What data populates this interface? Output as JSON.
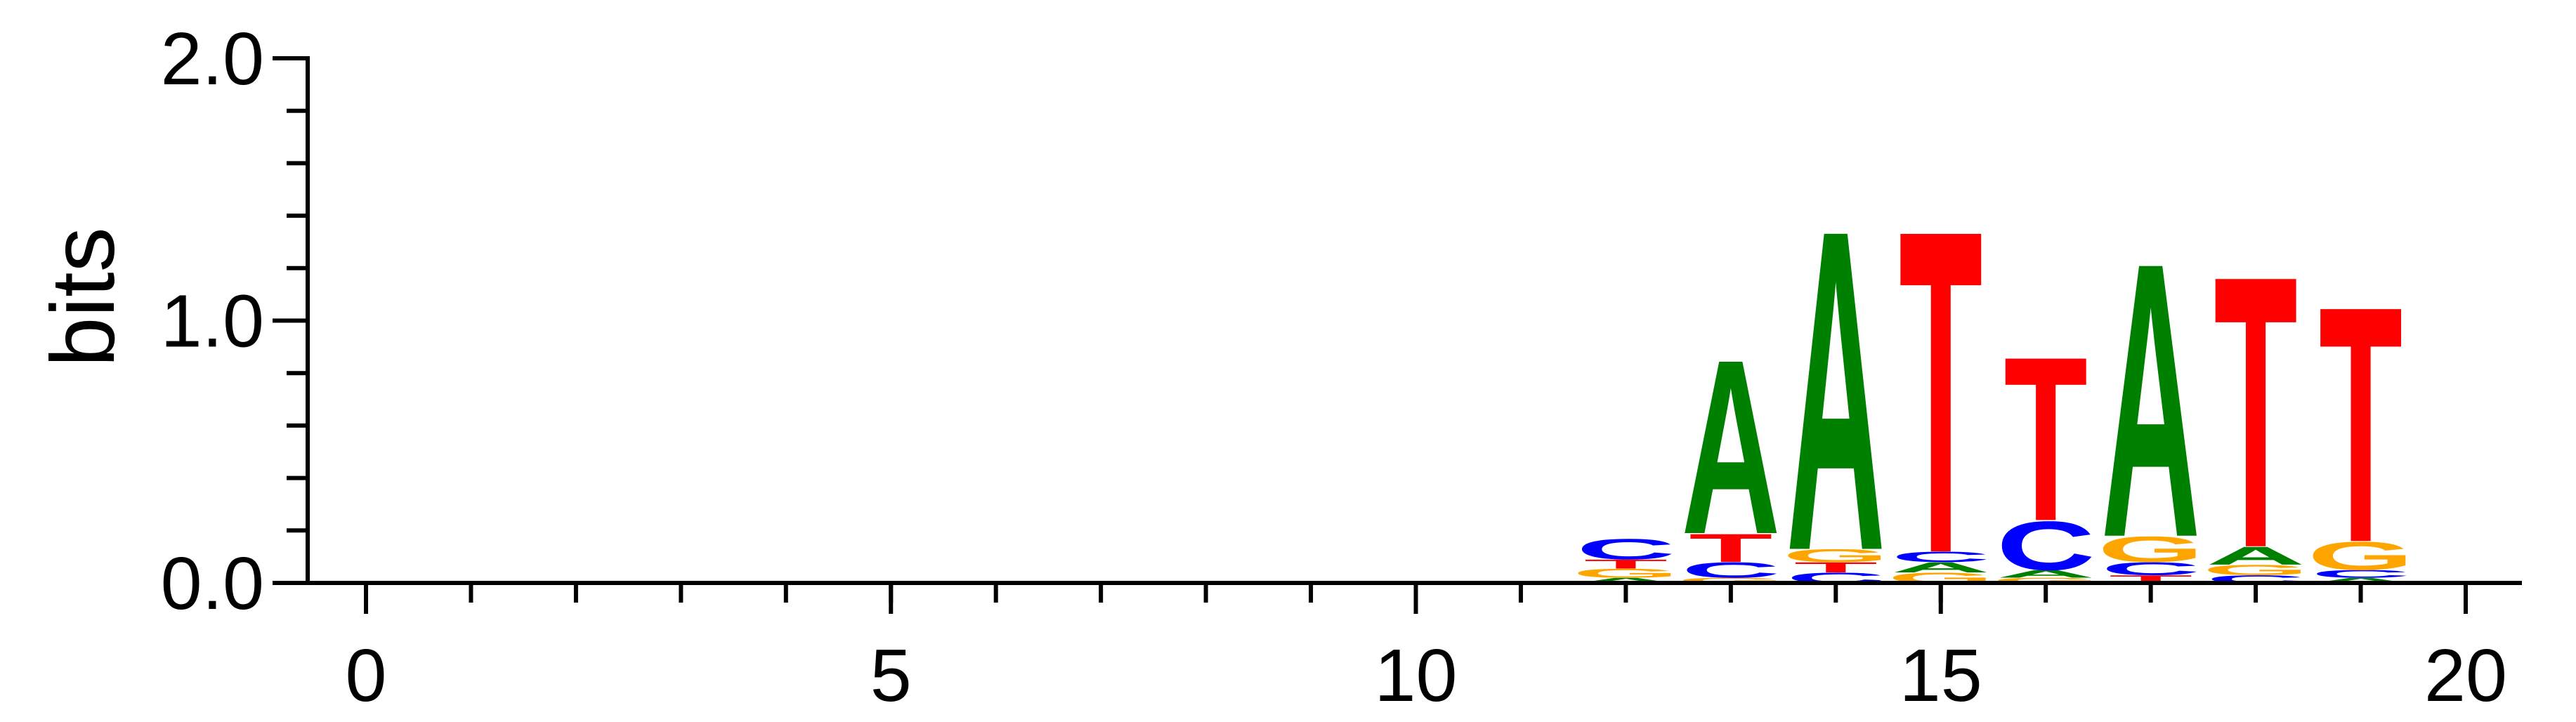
{
  "chart_data": {
    "type": "sequence-logo",
    "ylabel": "bits",
    "ylim": [
      0,
      2.0
    ],
    "xlim": [
      -0.7,
      20.5
    ],
    "y_ticks": [
      {
        "value": 0.0,
        "label": "0.0"
      },
      {
        "value": 1.0,
        "label": "1.0"
      },
      {
        "value": 2.0,
        "label": "2.0"
      }
    ],
    "x_ticks": [
      {
        "value": 0,
        "label": "0"
      },
      {
        "value": 5,
        "label": "5"
      },
      {
        "value": 10,
        "label": "10"
      },
      {
        "value": 15,
        "label": "15"
      },
      {
        "value": 20,
        "label": "20"
      }
    ],
    "letter_colors": {
      "A": "#008000",
      "C": "#0000ff",
      "G": "#ffa500",
      "T": "#ff0000"
    },
    "positions": [
      {
        "pos": 12,
        "stack": [
          {
            "letter": "A",
            "height": 0.02
          },
          {
            "letter": "G",
            "height": 0.035
          },
          {
            "letter": "T",
            "height": 0.035
          },
          {
            "letter": "C",
            "height": 0.08
          }
        ]
      },
      {
        "pos": 13,
        "stack": [
          {
            "letter": "G",
            "height": 0.02
          },
          {
            "letter": "C",
            "height": 0.06
          },
          {
            "letter": "T",
            "height": 0.11
          },
          {
            "letter": "A",
            "height": 0.68
          }
        ]
      },
      {
        "pos": 14,
        "stack": [
          {
            "letter": "C",
            "height": 0.04
          },
          {
            "letter": "T",
            "height": 0.04
          },
          {
            "letter": "G",
            "height": 0.05
          },
          {
            "letter": "A",
            "height": 1.25
          }
        ]
      },
      {
        "pos": 15,
        "stack": [
          {
            "letter": "G",
            "height": 0.04
          },
          {
            "letter": "A",
            "height": 0.04
          },
          {
            "letter": "C",
            "height": 0.04
          },
          {
            "letter": "T",
            "height": 1.26
          }
        ]
      },
      {
        "pos": 16,
        "stack": [
          {
            "letter": "G",
            "height": 0.02
          },
          {
            "letter": "A",
            "height": 0.03
          },
          {
            "letter": "C",
            "height": 0.19
          },
          {
            "letter": "T",
            "height": 0.64
          }
        ]
      },
      {
        "pos": 17,
        "stack": [
          {
            "letter": "T",
            "height": 0.03
          },
          {
            "letter": "C",
            "height": 0.05
          },
          {
            "letter": "G",
            "height": 0.1
          },
          {
            "letter": "A",
            "height": 1.07
          }
        ]
      },
      {
        "pos": 18,
        "stack": [
          {
            "letter": "C",
            "height": 0.03
          },
          {
            "letter": "G",
            "height": 0.04
          },
          {
            "letter": "A",
            "height": 0.07
          },
          {
            "letter": "T",
            "height": 1.06
          }
        ]
      },
      {
        "pos": 19,
        "stack": [
          {
            "letter": "A",
            "height": 0.02
          },
          {
            "letter": "C",
            "height": 0.03
          },
          {
            "letter": "G",
            "height": 0.11
          },
          {
            "letter": "T",
            "height": 0.92
          }
        ]
      }
    ]
  }
}
